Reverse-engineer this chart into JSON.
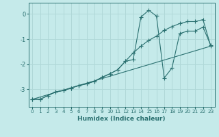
{
  "xlabel": "Humidex (Indice chaleur)",
  "ylabel": "",
  "background_color": "#c5eaea",
  "grid_color": "#b0d8d8",
  "line_color": "#2a7070",
  "xlim": [
    -0.5,
    23.5
  ],
  "ylim": [
    -3.7,
    0.45
  ],
  "xticks": [
    0,
    1,
    2,
    3,
    4,
    5,
    6,
    7,
    8,
    9,
    10,
    11,
    12,
    13,
    14,
    15,
    16,
    17,
    18,
    19,
    20,
    21,
    22,
    23
  ],
  "yticks": [
    0,
    -1,
    -2,
    -3
  ],
  "series1_x": [
    0,
    1,
    2,
    3,
    4,
    5,
    6,
    7,
    8,
    9,
    10,
    11,
    12,
    13,
    14,
    15,
    16,
    17,
    18,
    19,
    20,
    21,
    22,
    23
  ],
  "series1_y": [
    -3.4,
    -3.4,
    -3.25,
    -3.1,
    -3.05,
    -2.95,
    -2.85,
    -2.78,
    -2.68,
    -2.52,
    -2.38,
    -2.22,
    -1.88,
    -1.82,
    -0.12,
    0.15,
    -0.08,
    -2.55,
    -2.15,
    -0.78,
    -0.68,
    -0.68,
    -0.52,
    -1.25
  ],
  "series2_x": [
    0,
    1,
    2,
    3,
    4,
    5,
    6,
    7,
    8,
    9,
    10,
    11,
    12,
    13,
    14,
    15,
    16,
    17,
    18,
    19,
    20,
    21,
    22,
    23
  ],
  "series2_y": [
    -3.4,
    -3.4,
    -3.25,
    -3.1,
    -3.05,
    -2.95,
    -2.85,
    -2.78,
    -2.68,
    -2.52,
    -2.38,
    -2.22,
    -1.88,
    -1.55,
    -1.28,
    -1.05,
    -0.88,
    -0.65,
    -0.5,
    -0.38,
    -0.3,
    -0.3,
    -0.22,
    -1.28
  ],
  "series3_x": [
    0,
    23
  ],
  "series3_y": [
    -3.4,
    -1.28
  ]
}
